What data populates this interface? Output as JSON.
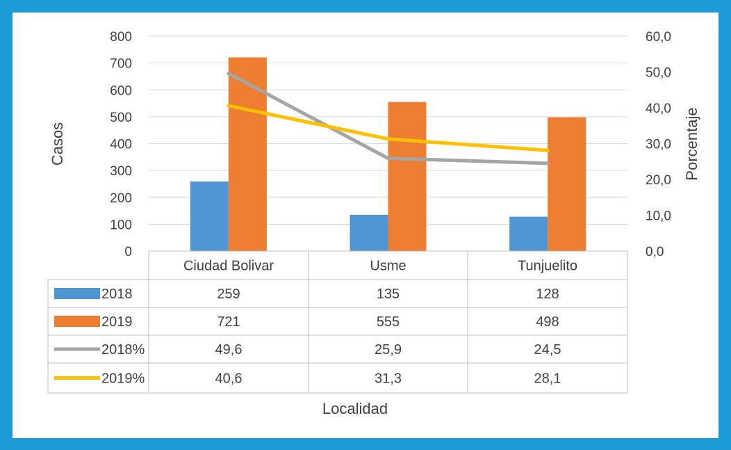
{
  "chart_data": {
    "type": "bar",
    "categories": [
      "Ciudad Bolivar",
      "Usme",
      "Tunjuelito"
    ],
    "series": [
      {
        "name": "2018",
        "kind": "bar",
        "axis": "left",
        "color": "#4e96d2",
        "values": [
          259,
          135,
          128
        ]
      },
      {
        "name": "2019",
        "kind": "bar",
        "axis": "left",
        "color": "#ed7d31",
        "values": [
          721,
          555,
          498
        ]
      },
      {
        "name": "2018%",
        "kind": "line",
        "axis": "right",
        "color": "#a5a5a5",
        "values": [
          49.6,
          25.9,
          24.5
        ]
      },
      {
        "name": "2019%",
        "kind": "line",
        "axis": "right",
        "color": "#ffc000",
        "values": [
          40.6,
          31.3,
          28.1
        ]
      }
    ],
    "table_values": [
      [
        "259",
        "135",
        "128"
      ],
      [
        "721",
        "555",
        "498"
      ],
      [
        "49,6",
        "25,9",
        "24,5"
      ],
      [
        "40,6",
        "31,3",
        "28,1"
      ]
    ],
    "xlabel": "Localidad",
    "ylabel": "Casos",
    "y2label": "Porcentaje",
    "ylim": [
      0,
      800
    ],
    "y2lim": [
      0,
      60
    ],
    "yticks": [
      "0",
      "100",
      "200",
      "300",
      "400",
      "500",
      "600",
      "700",
      "800"
    ],
    "y2ticks": [
      "0,0",
      "10,0",
      "20,0",
      "30,0",
      "40,0",
      "50,0",
      "60,0"
    ],
    "grid": true,
    "legend": "data-table"
  },
  "colors": {
    "frame": "#1a9ad6",
    "gridline": "#d9d9d9",
    "text": "#404040"
  }
}
